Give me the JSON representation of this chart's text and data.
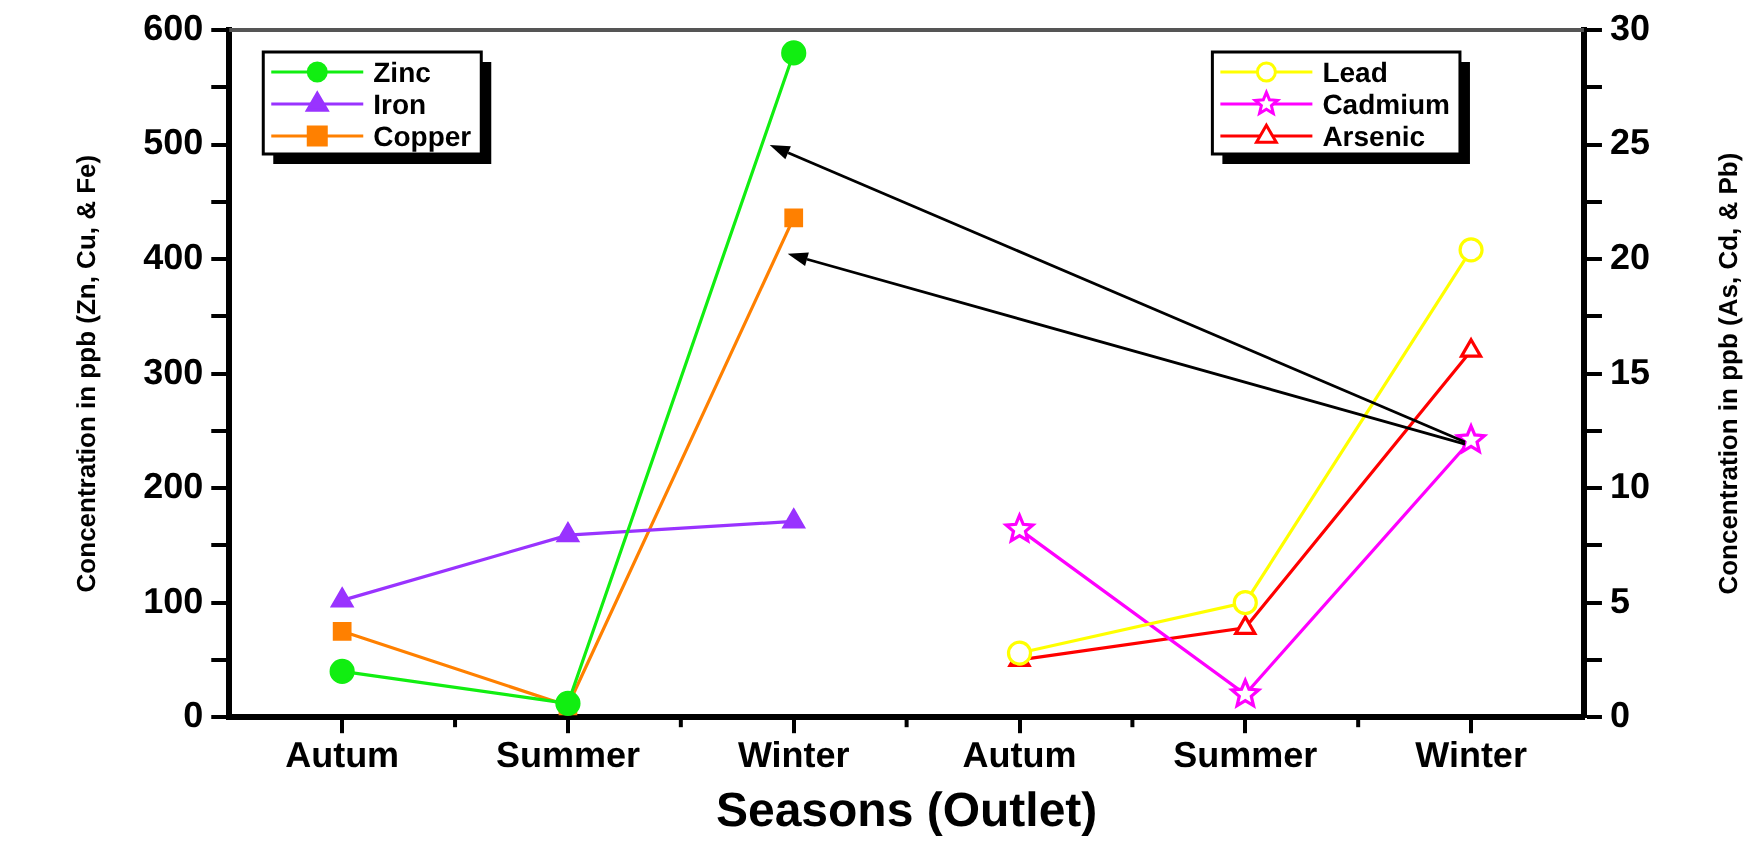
{
  "chart_data": {
    "type": "line",
    "xlabel": "Seasons (Outlet)",
    "ylabel": "Concentration in ppb (Zn, Cu, & Fe)",
    "y2label": "Concentration in ppb (As, Cd, & Pb)",
    "categories": [
      "Autum",
      "Summer",
      "Winter",
      "Autum",
      "Summer",
      "Winter"
    ],
    "series": [
      {
        "name": "Zinc",
        "color": "#11ee11",
        "marker": "circle",
        "values": [
          40,
          12,
          580,
          null,
          null,
          null
        ]
      },
      {
        "name": "Iron",
        "color": "#9933ff",
        "marker": "triangle",
        "values": [
          102,
          159,
          171,
          null,
          null,
          null
        ]
      },
      {
        "name": "Copper",
        "color": "#ff8000",
        "marker": "square",
        "values": [
          75,
          10,
          436,
          null,
          null,
          null
        ]
      },
      {
        "name": "Lead",
        "color": "#ffff00",
        "marker": "circle",
        "axis": "y2",
        "values": [
          null,
          null,
          null,
          2.8,
          5.0,
          20.4
        ]
      },
      {
        "name": "Cadmium",
        "color": "#ff00ff",
        "marker": "star",
        "axis": "y2",
        "values": [
          null,
          null,
          null,
          8.2,
          1.0,
          12.1
        ]
      },
      {
        "name": "Arsenic",
        "color": "#ff0000",
        "marker": "triangle",
        "axis": "y2",
        "values": [
          null,
          null,
          null,
          2.5,
          3.9,
          16
        ]
      }
    ],
    "ylim": [
      0,
      600
    ],
    "yticks": [
      0,
      {
        "value": 50,
        "label": null
      },
      100,
      {
        "value": 150,
        "label": null
      },
      200,
      {
        "value": 250,
        "label": null
      },
      300,
      {
        "value": 350,
        "label": null
      },
      400,
      {
        "value": 450,
        "label": null
      },
      500,
      {
        "value": 550,
        "label": null
      },
      600
    ],
    "y2lim": [
      0,
      30
    ],
    "y2ticks": [
      0,
      {
        "value": 2.5,
        "label": null
      },
      5,
      {
        "value": 7.5,
        "label": null
      },
      10,
      {
        "value": 12.5,
        "label": null
      },
      15,
      {
        "value": 17.5,
        "label": null
      },
      20,
      {
        "value": 22.5,
        "label": null
      },
      25,
      {
        "value": 27.5,
        "label": null
      },
      30
    ],
    "legend": "top"
  }
}
